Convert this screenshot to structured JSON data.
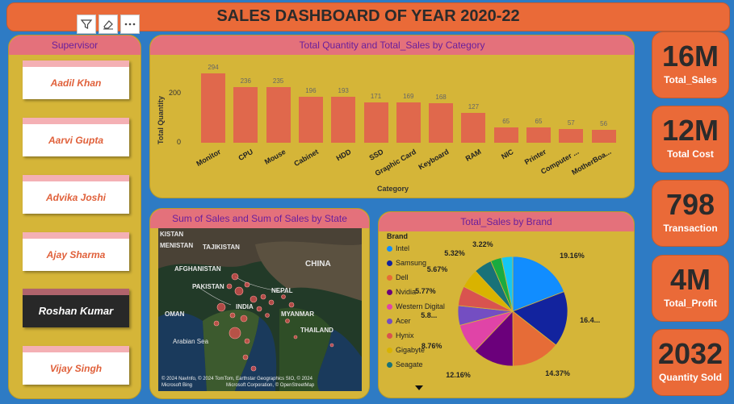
{
  "dashboard": {
    "title": "SALES DASHBOARD OF YEAR 2020-22"
  },
  "toolbar": {
    "icons": [
      "filter-icon",
      "eraser-icon",
      "more-icon"
    ]
  },
  "supervisor": {
    "header": "Supervisor",
    "items": [
      "Aadil Khan",
      "Aarvi Gupta",
      "Advika Joshi",
      "Ajay Sharma",
      "Roshan Kumar",
      "Vijay Singh"
    ],
    "selected": "Roshan Kumar"
  },
  "bar_panel": {
    "header": "Total Quantity and Total_Sales by Category",
    "ylabel": "Total Quantity",
    "xlabel": "Category",
    "yticks": [
      "200",
      "0"
    ]
  },
  "map_panel": {
    "header": "Sum of Sales and Sum of Sales by State",
    "labels": [
      "KISTAN",
      "MENISTAN",
      "TAJIKISTAN",
      "AFGHANISTAN",
      "PAKISTAN",
      "CHINA",
      "NEPAL",
      "INDIA",
      "OMAN",
      "MYANMAR",
      "THAILAND",
      "Arabian Sea"
    ],
    "attribution_1": "© 2024 NavInfo, © 2024 TomTom, Earthstar Geographics SIO, © 2024",
    "attribution_2": "Microsoft Corporation, © OpenStreetMap",
    "attribution_brand": "Microsoft Bing"
  },
  "pie_panel": {
    "header": "Total_Sales by Brand",
    "legend_title": "Brand"
  },
  "chart_data": [
    {
      "type": "bar",
      "title": "Total Quantity and Total_Sales by Category",
      "xlabel": "Category",
      "ylabel": "Total Quantity",
      "categories": [
        "Monitor",
        "CPU",
        "Mouse",
        "Cabinet",
        "HDD",
        "SSD",
        "Graphic Card",
        "Keyboard",
        "RAM",
        "NIC",
        "Printer",
        "Computer ...",
        "MotherBoa..."
      ],
      "values": [
        294,
        236,
        235,
        196,
        193,
        171,
        169,
        168,
        127,
        65,
        65,
        57,
        56
      ],
      "ylim": [
        0,
        300
      ],
      "grid": false,
      "color": "#e0684c"
    },
    {
      "type": "pie",
      "title": "Total_Sales by Brand",
      "legend": "left",
      "legend_entries": [
        "Intel",
        "Samsung",
        "Dell",
        "Nvidia",
        "Western Digital",
        "Acer",
        "Hynix",
        "Gigabyte",
        "Seagate"
      ],
      "slices": [
        {
          "label": "19.16%",
          "value": 19.16,
          "color": "#118dff"
        },
        {
          "label": "16.4...",
          "value": 16.4,
          "color": "#12239e"
        },
        {
          "label": "14.37%",
          "value": 14.37,
          "color": "#e66c37"
        },
        {
          "label": "12.16%",
          "value": 12.16,
          "color": "#6b007b"
        },
        {
          "label": "8.76%",
          "value": 8.76,
          "color": "#e044a7"
        },
        {
          "label": "5.8...",
          "value": 5.8,
          "color": "#744ec2"
        },
        {
          "label": "5.77%",
          "value": 5.77,
          "color": "#d9534f"
        },
        {
          "label": "5.67%",
          "value": 5.67,
          "color": "#d9b300"
        },
        {
          "label": "5.32%",
          "value": 5.32,
          "color": "#197278"
        },
        {
          "label": "3.22%",
          "value": 3.22,
          "color": "#1aab40"
        },
        {
          "label": "",
          "value": 3.35,
          "color": "#15c6f4"
        }
      ]
    }
  ],
  "kpis": [
    {
      "value": "16M",
      "label": "Total_Sales"
    },
    {
      "value": "12M",
      "label": "Total Cost"
    },
    {
      "value": "798",
      "label": "Transaction"
    },
    {
      "value": "4M",
      "label": "Total_Profit"
    },
    {
      "value": "2032",
      "label": "Quantity Sold"
    }
  ]
}
